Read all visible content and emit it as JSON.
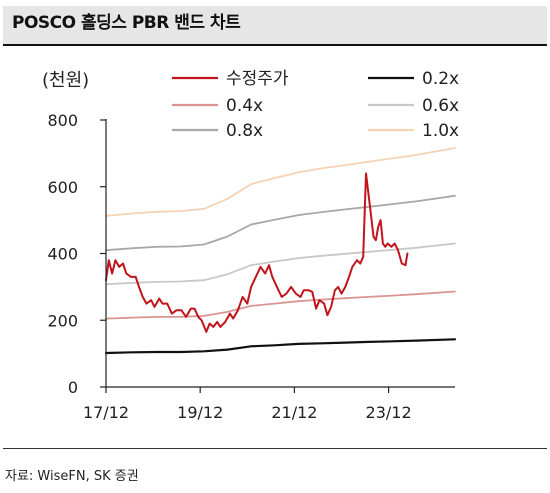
{
  "title": "POSCO 홀딩스 PBR 밴드 차트",
  "unit_label": "(천원)",
  "source": "자료: WiseFN, SK 증권",
  "chart_data": {
    "type": "line",
    "title": "POSCO 홀딩스 PBR 밴드 차트",
    "ylabel": "(천원)",
    "xlabel": "",
    "ylim": [
      0,
      800
    ],
    "yticks": [
      0,
      200,
      400,
      600,
      800
    ],
    "xlim": [
      2017.92,
      2025.33
    ],
    "xticks": [
      {
        "label": "17/12",
        "x": 2017.92
      },
      {
        "label": "19/12",
        "x": 2019.92
      },
      {
        "label": "21/12",
        "x": 2021.92
      },
      {
        "label": "23/12",
        "x": 2023.92
      }
    ],
    "legend_position": "top",
    "grid": false,
    "series": [
      {
        "name": "수정주가",
        "color": "#c0151d",
        "width": 2,
        "points": [
          [
            2017.92,
            320
          ],
          [
            2017.98,
            380
          ],
          [
            2018.05,
            340
          ],
          [
            2018.12,
            380
          ],
          [
            2018.2,
            360
          ],
          [
            2018.28,
            370
          ],
          [
            2018.35,
            340
          ],
          [
            2018.45,
            330
          ],
          [
            2018.55,
            330
          ],
          [
            2018.62,
            300
          ],
          [
            2018.7,
            270
          ],
          [
            2018.78,
            250
          ],
          [
            2018.88,
            260
          ],
          [
            2018.95,
            240
          ],
          [
            2019.05,
            265
          ],
          [
            2019.12,
            250
          ],
          [
            2019.22,
            250
          ],
          [
            2019.32,
            220
          ],
          [
            2019.42,
            230
          ],
          [
            2019.52,
            230
          ],
          [
            2019.62,
            210
          ],
          [
            2019.72,
            235
          ],
          [
            2019.8,
            235
          ],
          [
            2019.88,
            210
          ],
          [
            2019.95,
            200
          ],
          [
            2020.05,
            165
          ],
          [
            2020.12,
            190
          ],
          [
            2020.2,
            180
          ],
          [
            2020.28,
            195
          ],
          [
            2020.35,
            180
          ],
          [
            2020.45,
            195
          ],
          [
            2020.55,
            220
          ],
          [
            2020.62,
            205
          ],
          [
            2020.72,
            230
          ],
          [
            2020.82,
            270
          ],
          [
            2020.92,
            250
          ],
          [
            2021.0,
            300
          ],
          [
            2021.1,
            330
          ],
          [
            2021.2,
            360
          ],
          [
            2021.3,
            340
          ],
          [
            2021.38,
            365
          ],
          [
            2021.45,
            330
          ],
          [
            2021.55,
            300
          ],
          [
            2021.65,
            270
          ],
          [
            2021.75,
            280
          ],
          [
            2021.85,
            300
          ],
          [
            2021.95,
            280
          ],
          [
            2022.05,
            270
          ],
          [
            2022.12,
            290
          ],
          [
            2022.22,
            290
          ],
          [
            2022.3,
            285
          ],
          [
            2022.38,
            235
          ],
          [
            2022.45,
            260
          ],
          [
            2022.55,
            250
          ],
          [
            2022.62,
            215
          ],
          [
            2022.7,
            240
          ],
          [
            2022.78,
            290
          ],
          [
            2022.85,
            300
          ],
          [
            2022.92,
            280
          ],
          [
            2023.0,
            300
          ],
          [
            2023.08,
            330
          ],
          [
            2023.15,
            360
          ],
          [
            2023.25,
            380
          ],
          [
            2023.32,
            370
          ],
          [
            2023.38,
            390
          ],
          [
            2023.44,
            640
          ],
          [
            2023.5,
            570
          ],
          [
            2023.55,
            510
          ],
          [
            2023.6,
            450
          ],
          [
            2023.65,
            440
          ],
          [
            2023.7,
            480
          ],
          [
            2023.75,
            500
          ],
          [
            2023.8,
            430
          ],
          [
            2023.85,
            420
          ],
          [
            2023.9,
            430
          ],
          [
            2023.98,
            420
          ],
          [
            2024.05,
            430
          ],
          [
            2024.12,
            410
          ],
          [
            2024.2,
            370
          ],
          [
            2024.28,
            365
          ],
          [
            2024.32,
            400
          ]
        ]
      },
      {
        "name": "0.2x",
        "color": "#111111",
        "width": 2.2,
        "points": [
          [
            2017.92,
            102
          ],
          [
            2018.5,
            104
          ],
          [
            2019.0,
            105
          ],
          [
            2019.5,
            105
          ],
          [
            2020.0,
            107
          ],
          [
            2020.5,
            112
          ],
          [
            2021.0,
            122
          ],
          [
            2021.5,
            125
          ],
          [
            2022.0,
            129
          ],
          [
            2022.5,
            131
          ],
          [
            2023.0,
            133
          ],
          [
            2023.5,
            135
          ],
          [
            2024.0,
            137
          ],
          [
            2024.5,
            139
          ],
          [
            2025.33,
            143
          ]
        ]
      },
      {
        "name": "0.4x",
        "color": "#d99591",
        "width": 1.8,
        "points": [
          [
            2017.92,
            205
          ],
          [
            2018.5,
            208
          ],
          [
            2019.0,
            210
          ],
          [
            2019.5,
            210
          ],
          [
            2020.0,
            213
          ],
          [
            2020.5,
            225
          ],
          [
            2021.0,
            243
          ],
          [
            2021.5,
            250
          ],
          [
            2022.0,
            257
          ],
          [
            2022.5,
            262
          ],
          [
            2023.0,
            266
          ],
          [
            2023.5,
            270
          ],
          [
            2024.0,
            274
          ],
          [
            2024.5,
            278
          ],
          [
            2025.33,
            286
          ]
        ]
      },
      {
        "name": "0.6x",
        "color": "#c8c8c8",
        "width": 1.8,
        "points": [
          [
            2017.92,
            308
          ],
          [
            2018.5,
            312
          ],
          [
            2019.0,
            315
          ],
          [
            2019.5,
            316
          ],
          [
            2020.0,
            320
          ],
          [
            2020.5,
            338
          ],
          [
            2021.0,
            365
          ],
          [
            2021.5,
            376
          ],
          [
            2022.0,
            386
          ],
          [
            2022.5,
            393
          ],
          [
            2023.0,
            399
          ],
          [
            2023.5,
            405
          ],
          [
            2024.0,
            411
          ],
          [
            2024.5,
            417
          ],
          [
            2025.33,
            430
          ]
        ]
      },
      {
        "name": "0.8x",
        "color": "#a8a8a8",
        "width": 1.8,
        "points": [
          [
            2017.92,
            410
          ],
          [
            2018.5,
            416
          ],
          [
            2019.0,
            420
          ],
          [
            2019.5,
            421
          ],
          [
            2020.0,
            427
          ],
          [
            2020.5,
            451
          ],
          [
            2021.0,
            487
          ],
          [
            2021.5,
            501
          ],
          [
            2022.0,
            515
          ],
          [
            2022.5,
            524
          ],
          [
            2023.0,
            532
          ],
          [
            2023.5,
            540
          ],
          [
            2024.0,
            548
          ],
          [
            2024.5,
            556
          ],
          [
            2025.33,
            573
          ]
        ]
      },
      {
        "name": "1.0x",
        "color": "#f5d3b5",
        "width": 1.8,
        "points": [
          [
            2017.92,
            513
          ],
          [
            2018.5,
            520
          ],
          [
            2019.0,
            525
          ],
          [
            2019.5,
            527
          ],
          [
            2020.0,
            534
          ],
          [
            2020.5,
            564
          ],
          [
            2021.0,
            608
          ],
          [
            2021.5,
            626
          ],
          [
            2022.0,
            643
          ],
          [
            2022.5,
            655
          ],
          [
            2023.0,
            665
          ],
          [
            2023.5,
            675
          ],
          [
            2024.0,
            685
          ],
          [
            2024.5,
            695
          ],
          [
            2025.33,
            716
          ]
        ]
      }
    ]
  }
}
